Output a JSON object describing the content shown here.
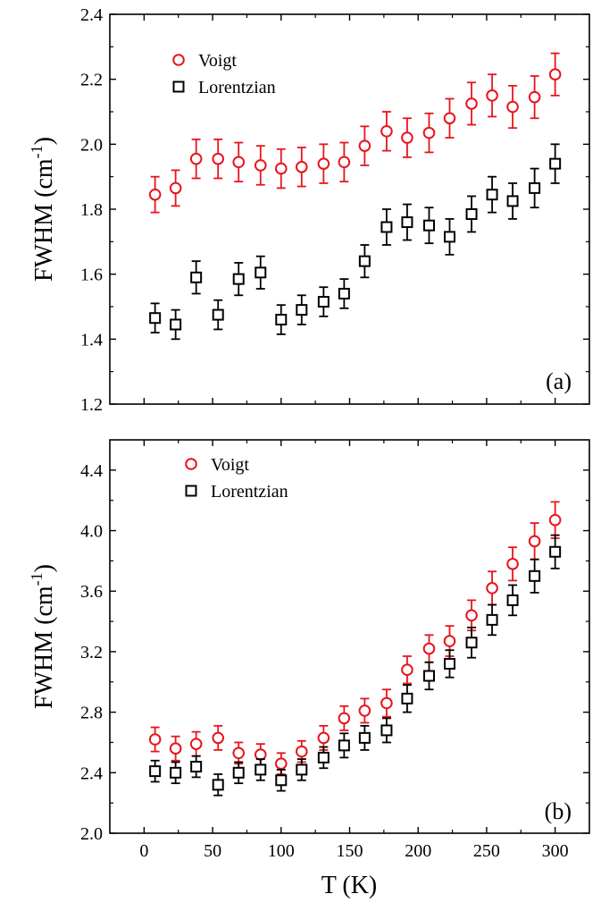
{
  "chart_data": [
    {
      "type": "scatter",
      "panel_label": "(a)",
      "xlabel": "T (K)",
      "ylabel": "FWHM (cm",
      "ylabel_sup": "-1",
      "ylabel_close": ")",
      "xlim": [
        -25,
        325
      ],
      "ylim": [
        1.2,
        2.4
      ],
      "x_ticks": [
        0,
        50,
        100,
        150,
        200,
        250,
        300
      ],
      "x_tick_labels": [],
      "y_ticks": [
        1.2,
        1.4,
        1.6,
        1.8,
        2.0,
        2.2,
        2.4
      ],
      "y_tick_labels": [
        "1.2",
        "1.4",
        "1.6",
        "1.8",
        "2.0",
        "2.2",
        "2.4"
      ],
      "grid": false,
      "legend": "top-left",
      "x": [
        8,
        23,
        38,
        54,
        69,
        85,
        100,
        115,
        131,
        146,
        161,
        177,
        192,
        208,
        223,
        239,
        254,
        269,
        285,
        300
      ],
      "series": [
        {
          "name": "Voigt",
          "marker": "circle",
          "color": "#e8141c",
          "values": [
            1.845,
            1.865,
            1.955,
            1.955,
            1.945,
            1.935,
            1.925,
            1.93,
            1.94,
            1.945,
            1.995,
            2.04,
            2.02,
            2.035,
            2.08,
            2.125,
            2.15,
            2.115,
            2.145,
            2.215
          ],
          "errors": [
            0.055,
            0.055,
            0.06,
            0.06,
            0.06,
            0.06,
            0.06,
            0.06,
            0.06,
            0.06,
            0.06,
            0.06,
            0.06,
            0.06,
            0.06,
            0.065,
            0.065,
            0.065,
            0.065,
            0.065
          ]
        },
        {
          "name": "Lorentzian",
          "marker": "square",
          "color": "#000000",
          "values": [
            1.465,
            1.445,
            1.59,
            1.475,
            1.585,
            1.605,
            1.46,
            1.49,
            1.515,
            1.54,
            1.64,
            1.745,
            1.76,
            1.75,
            1.715,
            1.785,
            1.845,
            1.825,
            1.865,
            1.94
          ],
          "errors": [
            0.045,
            0.045,
            0.05,
            0.045,
            0.05,
            0.05,
            0.045,
            0.045,
            0.045,
            0.045,
            0.05,
            0.055,
            0.055,
            0.055,
            0.055,
            0.055,
            0.055,
            0.055,
            0.06,
            0.06
          ]
        }
      ]
    },
    {
      "type": "scatter",
      "panel_label": "(b)",
      "xlabel": "T (K)",
      "ylabel": "FWHM (cm",
      "ylabel_sup": "-1",
      "ylabel_close": ")",
      "xlim": [
        -25,
        325
      ],
      "ylim": [
        2.0,
        4.6
      ],
      "x_ticks": [
        0,
        50,
        100,
        150,
        200,
        250,
        300
      ],
      "x_tick_labels": [
        "0",
        "50",
        "100",
        "150",
        "200",
        "250",
        "300"
      ],
      "y_ticks": [
        2.0,
        2.4,
        2.8,
        3.2,
        3.6,
        4.0,
        4.4
      ],
      "y_tick_labels": [
        "2.0",
        "2.4",
        "2.8",
        "3.2",
        "3.6",
        "4.0",
        "4.4"
      ],
      "grid": false,
      "legend": "top-left",
      "x": [
        8,
        23,
        38,
        54,
        69,
        85,
        100,
        115,
        131,
        146,
        161,
        177,
        192,
        208,
        223,
        239,
        254,
        269,
        285,
        300
      ],
      "series": [
        {
          "name": "Voigt",
          "marker": "circle",
          "color": "#e8141c",
          "values": [
            2.62,
            2.56,
            2.59,
            2.63,
            2.53,
            2.52,
            2.46,
            2.54,
            2.63,
            2.76,
            2.81,
            2.86,
            3.08,
            3.22,
            3.27,
            3.44,
            3.62,
            3.78,
            3.93,
            4.07
          ],
          "errors": [
            0.08,
            0.08,
            0.08,
            0.08,
            0.07,
            0.07,
            0.07,
            0.07,
            0.08,
            0.08,
            0.08,
            0.09,
            0.09,
            0.09,
            0.1,
            0.1,
            0.11,
            0.11,
            0.12,
            0.12
          ]
        },
        {
          "name": "Lorentzian",
          "marker": "square",
          "color": "#000000",
          "values": [
            2.41,
            2.4,
            2.44,
            2.32,
            2.4,
            2.42,
            2.35,
            2.42,
            2.5,
            2.58,
            2.63,
            2.68,
            2.89,
            3.04,
            3.12,
            3.26,
            3.41,
            3.54,
            3.7,
            3.86
          ],
          "errors": [
            0.07,
            0.07,
            0.07,
            0.07,
            0.07,
            0.07,
            0.07,
            0.07,
            0.07,
            0.08,
            0.08,
            0.08,
            0.09,
            0.09,
            0.09,
            0.1,
            0.1,
            0.1,
            0.11,
            0.11
          ]
        }
      ]
    }
  ]
}
